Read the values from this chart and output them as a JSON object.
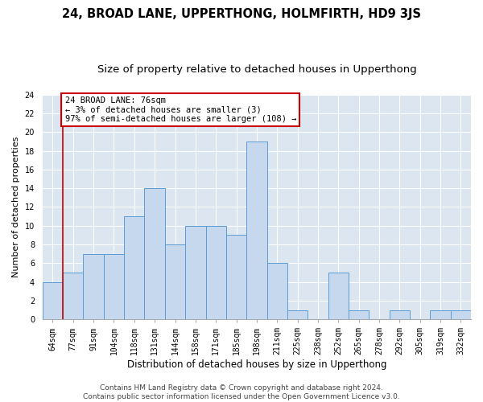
{
  "title": "24, BROAD LANE, UPPERTHONG, HOLMFIRTH, HD9 3JS",
  "subtitle": "Size of property relative to detached houses in Upperthong",
  "xlabel": "Distribution of detached houses by size in Upperthong",
  "ylabel": "Number of detached properties",
  "categories": [
    "64sqm",
    "77sqm",
    "91sqm",
    "104sqm",
    "118sqm",
    "131sqm",
    "144sqm",
    "158sqm",
    "171sqm",
    "185sqm",
    "198sqm",
    "211sqm",
    "225sqm",
    "238sqm",
    "252sqm",
    "265sqm",
    "278sqm",
    "292sqm",
    "305sqm",
    "319sqm",
    "332sqm"
  ],
  "values": [
    4,
    5,
    7,
    7,
    11,
    14,
    8,
    10,
    10,
    9,
    19,
    6,
    1,
    0,
    5,
    1,
    0,
    1,
    0,
    1,
    1
  ],
  "bar_color": "#c5d8ed",
  "bar_edge_color": "#5b9bd5",
  "vline_idx": 1,
  "annotation_text": "24 BROAD LANE: 76sqm\n← 3% of detached houses are smaller (3)\n97% of semi-detached houses are larger (108) →",
  "annotation_box_color": "#ffffff",
  "annotation_box_edge": "#cc0000",
  "ylim": [
    0,
    24
  ],
  "yticks": [
    0,
    2,
    4,
    6,
    8,
    10,
    12,
    14,
    16,
    18,
    20,
    22,
    24
  ],
  "background_color": "#dce6f1",
  "footer_line1": "Contains HM Land Registry data © Crown copyright and database right 2024.",
  "footer_line2": "Contains public sector information licensed under the Open Government Licence v3.0.",
  "title_fontsize": 10.5,
  "subtitle_fontsize": 9.5,
  "xlabel_fontsize": 8.5,
  "ylabel_fontsize": 8,
  "tick_fontsize": 7,
  "annotation_fontsize": 7.5,
  "footer_fontsize": 6.5
}
